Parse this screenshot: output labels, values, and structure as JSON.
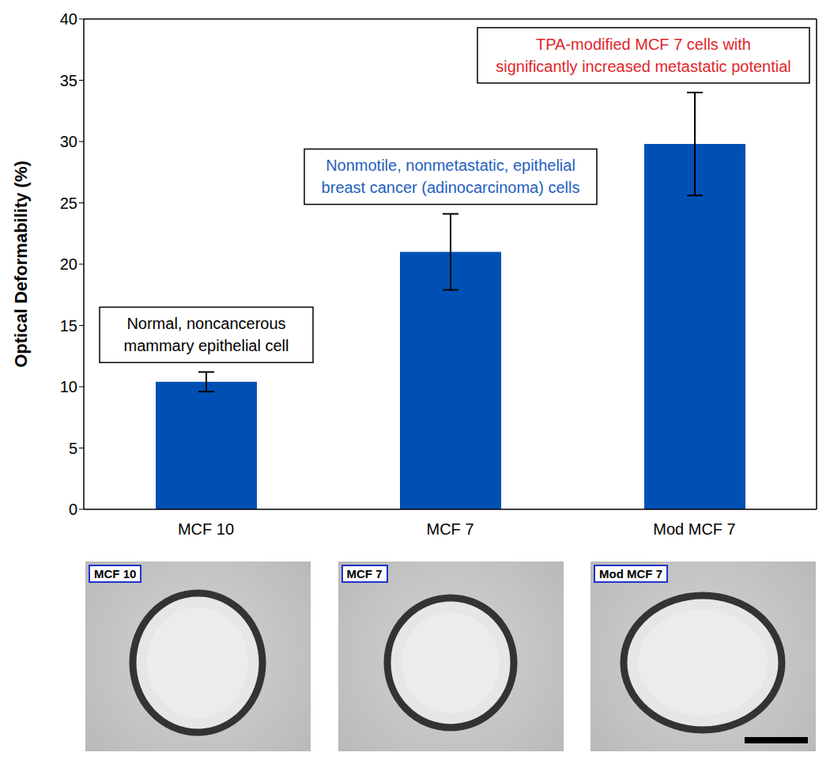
{
  "chart_data": {
    "type": "bar",
    "categories": [
      "MCF 10",
      "MCF 7",
      "Mod MCF 7"
    ],
    "values": [
      10.4,
      21,
      29.8
    ],
    "errors": [
      0.8,
      3.1,
      4.2
    ],
    "color": "#0050b4",
    "ylim": [
      0,
      40
    ],
    "yticks": [
      0,
      5,
      10,
      15,
      20,
      25,
      30,
      35,
      40
    ],
    "y_label": "Optical Deformability (%)",
    "grid": false,
    "annotations": [
      {
        "lines": [
          "Normal, noncancerous",
          "mammary epithelial cell"
        ],
        "color": "#000000"
      },
      {
        "lines": [
          "Nonmotile, nonmetastatic, epithelial",
          "breast cancer (adinocarcinoma) cells"
        ],
        "color": "#1f5fbf"
      },
      {
        "lines": [
          "TPA-modified MCF 7 cells with",
          "significantly increased metastatic potential"
        ],
        "color": "#e0262a"
      }
    ],
    "image_panels": [
      "MCF 10",
      "MCF 7",
      "Mod MCF 7"
    ]
  }
}
